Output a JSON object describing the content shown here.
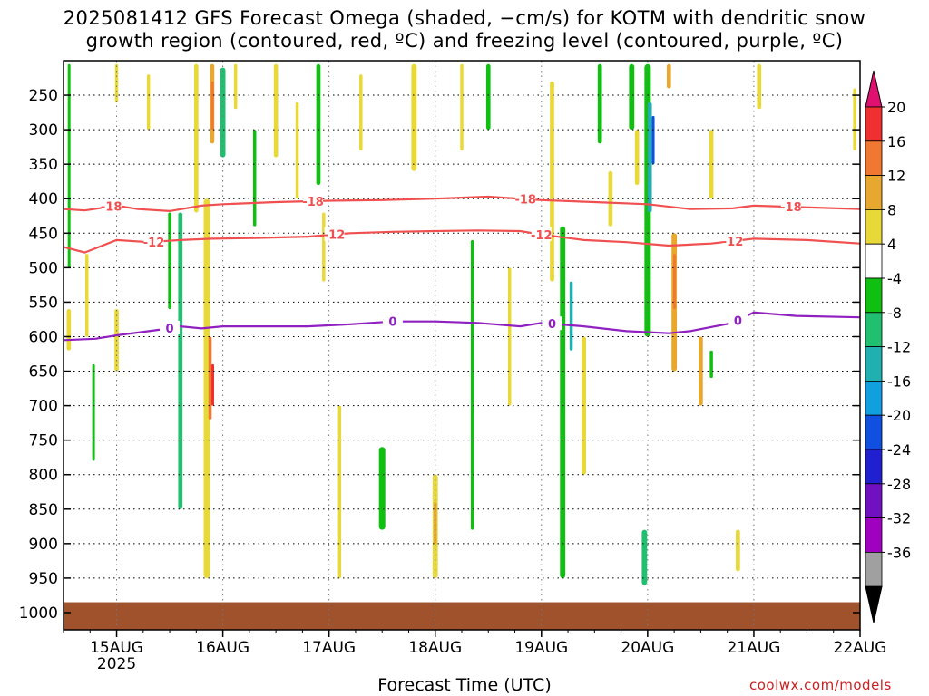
{
  "title_line1": "2025081412 GFS Forecast Omega (shaded, −cm/s) for KOTM with dendritic snow",
  "title_line2": "growth region (contoured, red, ºC) and freezing level (contoured, purple, ºC)",
  "credit": "coolwx.com/models",
  "chart_data": {
    "type": "heatmap",
    "xlabel": "Forecast Time (UTC)",
    "ylabel": "",
    "x_ticks": [
      {
        "label": "15AUG",
        "sub": "2025",
        "day": 15.0
      },
      {
        "label": "16AUG",
        "sub": "",
        "day": 16.0
      },
      {
        "label": "17AUG",
        "sub": "",
        "day": 17.0
      },
      {
        "label": "18AUG",
        "sub": "",
        "day": 18.0
      },
      {
        "label": "19AUG",
        "sub": "",
        "day": 19.0
      },
      {
        "label": "20AUG",
        "sub": "",
        "day": 20.0
      },
      {
        "label": "21AUG",
        "sub": "",
        "day": 21.0
      },
      {
        "label": "22AUG",
        "sub": "",
        "day": 22.0
      }
    ],
    "xlim": [
      14.5,
      22.0
    ],
    "y_ticks": [
      250,
      300,
      350,
      400,
      450,
      500,
      550,
      600,
      650,
      700,
      750,
      800,
      850,
      900,
      950,
      1000
    ],
    "ylim": [
      200,
      1025
    ],
    "grid": true,
    "colorbar": {
      "levels": [
        "20",
        "16",
        "12",
        "8",
        "4",
        "-4",
        "-8",
        "-12",
        "-16",
        "-20",
        "-24",
        "-28",
        "-32",
        "-36"
      ],
      "colors": [
        "#f03030",
        "#f07830",
        "#e8a830",
        "#e8d838",
        "#ffffff",
        "#10c010",
        "#20c070",
        "#20b0b0",
        "#10a0e0",
        "#1050e0",
        "#2020d0",
        "#7010c0",
        "#a000c0",
        "#a0a0a0"
      ],
      "top_color": "#e01070",
      "bottom_color": "#000000"
    },
    "contours": [
      {
        "label": "-18",
        "color": "#f05050",
        "points": [
          [
            14.5,
            415
          ],
          [
            14.7,
            417
          ],
          [
            15.0,
            410
          ],
          [
            15.2,
            415
          ],
          [
            15.5,
            418
          ],
          [
            15.8,
            410
          ],
          [
            16.0,
            408
          ],
          [
            16.5,
            405
          ],
          [
            17.0,
            403
          ],
          [
            17.5,
            402
          ],
          [
            18.0,
            400
          ],
          [
            18.5,
            397
          ],
          [
            19.0,
            402
          ],
          [
            19.5,
            405
          ],
          [
            20.0,
            408
          ],
          [
            20.4,
            415
          ],
          [
            20.8,
            414
          ],
          [
            21.0,
            410
          ],
          [
            21.4,
            412
          ],
          [
            22.0,
            415
          ]
        ],
        "label_days": [
          14.95,
          16.85,
          18.85,
          21.35
        ]
      },
      {
        "label": "-12",
        "color": "#f05050",
        "points": [
          [
            14.5,
            470
          ],
          [
            14.7,
            478
          ],
          [
            15.0,
            460
          ],
          [
            15.3,
            463
          ],
          [
            15.6,
            460
          ],
          [
            15.9,
            458
          ],
          [
            16.3,
            457
          ],
          [
            16.8,
            455
          ],
          [
            17.2,
            450
          ],
          [
            17.6,
            448
          ],
          [
            18.0,
            447
          ],
          [
            18.4,
            446
          ],
          [
            18.8,
            447
          ],
          [
            19.0,
            452
          ],
          [
            19.4,
            460
          ],
          [
            19.8,
            463
          ],
          [
            20.2,
            468
          ],
          [
            20.6,
            465
          ],
          [
            21.0,
            458
          ],
          [
            21.5,
            460
          ],
          [
            22.0,
            465
          ]
        ],
        "label_days": [
          15.35,
          17.05,
          19.0,
          20.8
        ]
      },
      {
        "label": "0",
        "color": "#9020c0",
        "points": [
          [
            14.5,
            605
          ],
          [
            14.8,
            603
          ],
          [
            15.0,
            598
          ],
          [
            15.4,
            590
          ],
          [
            15.6,
            585
          ],
          [
            15.8,
            588
          ],
          [
            16.0,
            585
          ],
          [
            16.4,
            585
          ],
          [
            16.8,
            585
          ],
          [
            17.2,
            582
          ],
          [
            17.6,
            578
          ],
          [
            18.0,
            578
          ],
          [
            18.4,
            580
          ],
          [
            18.8,
            585
          ],
          [
            19.0,
            580
          ],
          [
            19.4,
            585
          ],
          [
            19.8,
            592
          ],
          [
            20.2,
            595
          ],
          [
            20.4,
            592
          ],
          [
            20.8,
            580
          ],
          [
            21.0,
            565
          ],
          [
            21.4,
            570
          ],
          [
            22.0,
            572
          ]
        ],
        "label_days": [
          15.5,
          17.6,
          19.1,
          20.85
        ]
      }
    ],
    "shaded": [
      {
        "day": 14.55,
        "p0": 205,
        "p1": 500,
        "w": 0.02,
        "color": "#10c010"
      },
      {
        "day": 14.55,
        "p0": 560,
        "p1": 620,
        "w": 0.04,
        "color": "#e8d838"
      },
      {
        "day": 14.72,
        "p0": 480,
        "p1": 600,
        "w": 0.03,
        "color": "#e8d838"
      },
      {
        "day": 14.78,
        "p0": 640,
        "p1": 780,
        "w": 0.02,
        "color": "#10c010"
      },
      {
        "day": 15.0,
        "p0": 205,
        "p1": 260,
        "w": 0.03,
        "color": "#e8d838"
      },
      {
        "day": 15.0,
        "p0": 560,
        "p1": 650,
        "w": 0.04,
        "color": "#e8d838"
      },
      {
        "day": 15.3,
        "p0": 220,
        "p1": 300,
        "w": 0.03,
        "color": "#e8d838"
      },
      {
        "day": 15.5,
        "p0": 420,
        "p1": 560,
        "w": 0.03,
        "color": "#10c010"
      },
      {
        "day": 15.6,
        "p0": 420,
        "p1": 850,
        "w": 0.04,
        "color": "#20c070"
      },
      {
        "day": 15.75,
        "p0": 205,
        "p1": 420,
        "w": 0.04,
        "color": "#e8d838"
      },
      {
        "day": 15.9,
        "p0": 205,
        "p1": 320,
        "w": 0.04,
        "color": "#e8a830"
      },
      {
        "day": 15.9,
        "p0": 230,
        "p1": 300,
        "w": 0.02,
        "color": "#f07830"
      },
      {
        "day": 15.85,
        "p0": 400,
        "p1": 950,
        "w": 0.06,
        "color": "#e8d838"
      },
      {
        "day": 15.88,
        "p0": 600,
        "p1": 720,
        "w": 0.03,
        "color": "#f07830"
      },
      {
        "day": 15.9,
        "p0": 640,
        "p1": 700,
        "w": 0.015,
        "color": "#f03030"
      },
      {
        "day": 16.0,
        "p0": 210,
        "p1": 340,
        "w": 0.05,
        "color": "#20c070"
      },
      {
        "day": 16.12,
        "p0": 205,
        "p1": 270,
        "w": 0.03,
        "color": "#e8d838"
      },
      {
        "day": 16.3,
        "p0": 300,
        "p1": 440,
        "w": 0.03,
        "color": "#10c010"
      },
      {
        "day": 16.5,
        "p0": 205,
        "p1": 340,
        "w": 0.04,
        "color": "#e8d838"
      },
      {
        "day": 16.7,
        "p0": 260,
        "p1": 400,
        "w": 0.03,
        "color": "#e8d838"
      },
      {
        "day": 16.9,
        "p0": 205,
        "p1": 380,
        "w": 0.04,
        "color": "#10c010"
      },
      {
        "day": 16.95,
        "p0": 420,
        "p1": 520,
        "w": 0.03,
        "color": "#e8d838"
      },
      {
        "day": 17.1,
        "p0": 700,
        "p1": 950,
        "w": 0.03,
        "color": "#e8d838"
      },
      {
        "day": 17.3,
        "p0": 220,
        "p1": 330,
        "w": 0.03,
        "color": "#e8d838"
      },
      {
        "day": 17.5,
        "p0": 760,
        "p1": 880,
        "w": 0.06,
        "color": "#10c010"
      },
      {
        "day": 17.8,
        "p0": 205,
        "p1": 360,
        "w": 0.05,
        "color": "#e8d838"
      },
      {
        "day": 18.0,
        "p0": 800,
        "p1": 950,
        "w": 0.05,
        "color": "#e8d838"
      },
      {
        "day": 18.0,
        "p0": 840,
        "p1": 900,
        "w": 0.03,
        "color": "#e8a830"
      },
      {
        "day": 18.25,
        "p0": 205,
        "p1": 330,
        "w": 0.03,
        "color": "#e8d838"
      },
      {
        "day": 18.35,
        "p0": 460,
        "p1": 880,
        "w": 0.03,
        "color": "#10c010"
      },
      {
        "day": 18.5,
        "p0": 205,
        "p1": 300,
        "w": 0.04,
        "color": "#10c010"
      },
      {
        "day": 18.7,
        "p0": 500,
        "p1": 700,
        "w": 0.03,
        "color": "#e8d838"
      },
      {
        "day": 19.1,
        "p0": 230,
        "p1": 520,
        "w": 0.04,
        "color": "#e8d838"
      },
      {
        "day": 19.2,
        "p0": 440,
        "p1": 950,
        "w": 0.05,
        "color": "#10c010"
      },
      {
        "day": 19.28,
        "p0": 520,
        "p1": 620,
        "w": 0.03,
        "color": "#20b0b0"
      },
      {
        "day": 19.4,
        "p0": 600,
        "p1": 800,
        "w": 0.04,
        "color": "#e8d838"
      },
      {
        "day": 19.55,
        "p0": 205,
        "p1": 320,
        "w": 0.04,
        "color": "#10c010"
      },
      {
        "day": 19.65,
        "p0": 360,
        "p1": 440,
        "w": 0.04,
        "color": "#e8d838"
      },
      {
        "day": 19.85,
        "p0": 205,
        "p1": 300,
        "w": 0.05,
        "color": "#10c010"
      },
      {
        "day": 19.9,
        "p0": 300,
        "p1": 380,
        "w": 0.04,
        "color": "#e8d838"
      },
      {
        "day": 20.0,
        "p0": 205,
        "p1": 600,
        "w": 0.06,
        "color": "#10c010"
      },
      {
        "day": 20.02,
        "p0": 260,
        "p1": 420,
        "w": 0.04,
        "color": "#20b0b0"
      },
      {
        "day": 20.05,
        "p0": 280,
        "p1": 350,
        "w": 0.02,
        "color": "#1050e0"
      },
      {
        "day": 19.97,
        "p0": 880,
        "p1": 960,
        "w": 0.05,
        "color": "#20c070"
      },
      {
        "day": 20.2,
        "p0": 205,
        "p1": 240,
        "w": 0.04,
        "color": "#e8a830"
      },
      {
        "day": 20.25,
        "p0": 450,
        "p1": 650,
        "w": 0.05,
        "color": "#e8a830"
      },
      {
        "day": 20.25,
        "p0": 480,
        "p1": 560,
        "w": 0.02,
        "color": "#f07830"
      },
      {
        "day": 20.5,
        "p0": 600,
        "p1": 700,
        "w": 0.04,
        "color": "#e8a830"
      },
      {
        "day": 20.6,
        "p0": 300,
        "p1": 400,
        "w": 0.04,
        "color": "#e8d838"
      },
      {
        "day": 20.6,
        "p0": 620,
        "p1": 660,
        "w": 0.03,
        "color": "#10c010"
      },
      {
        "day": 20.85,
        "p0": 880,
        "p1": 940,
        "w": 0.04,
        "color": "#e8d838"
      },
      {
        "day": 21.05,
        "p0": 205,
        "p1": 270,
        "w": 0.04,
        "color": "#e8d838"
      },
      {
        "day": 21.95,
        "p0": 240,
        "p1": 330,
        "w": 0.03,
        "color": "#e8d838"
      }
    ],
    "ground": {
      "top_pressure": 985,
      "color": "#a0522d"
    }
  }
}
